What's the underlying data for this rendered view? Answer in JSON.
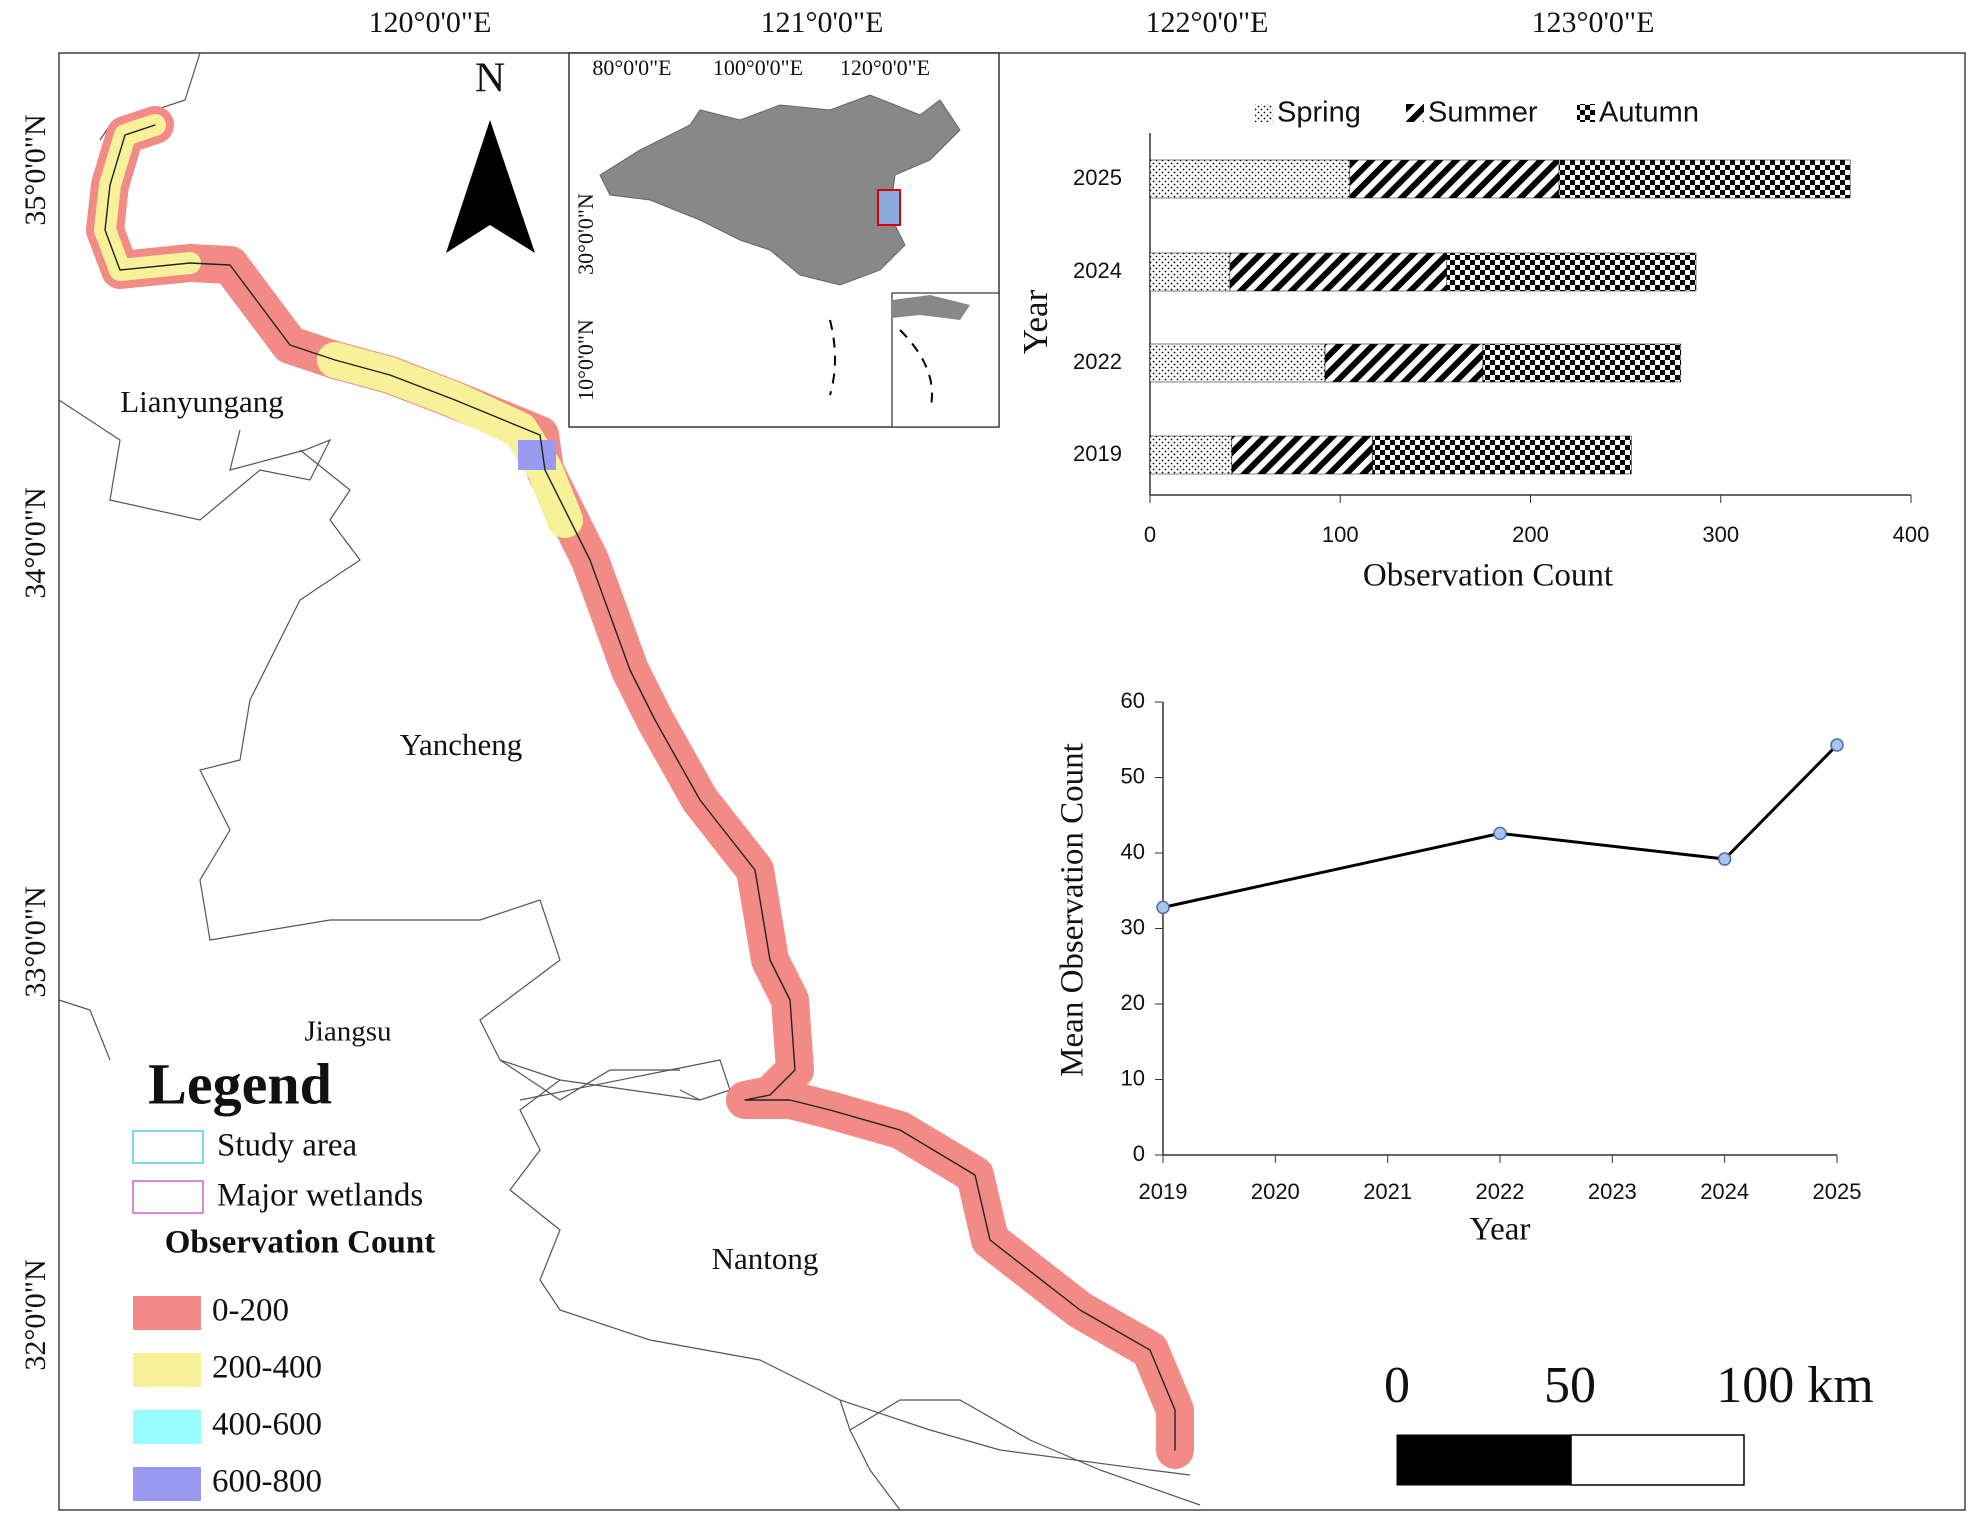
{
  "map": {
    "lon_labels": [
      "120°0'0\"E",
      "121°0'0\"E",
      "122°0'0\"E",
      "123°0'0\"E"
    ],
    "lat_labels": [
      "35°0'0\"N",
      "34°0'0\"N",
      "33°0'0\"N",
      "32°0'0\"N"
    ],
    "north": "N",
    "places": [
      "Lianyungang",
      "Yancheng",
      "Nantong"
    ],
    "province": "Jiangsu",
    "inset": {
      "lon_labels": [
        "80°0'0\"E",
        "100°0'0\"E",
        "120°0'0\"E"
      ],
      "lat_labels": [
        "30°0'0\"N",
        "10°0'0\"N"
      ]
    },
    "legend": {
      "title": "Legend",
      "items": [
        "Study area",
        "Major wetlands"
      ],
      "count_title": "Observation Count",
      "classes": [
        {
          "label": "0-200",
          "color": "#f28b86"
        },
        {
          "label": "200-400",
          "color": "#f7f29a"
        },
        {
          "label": "400-600",
          "color": "#99fcfc"
        },
        {
          "label": "600-800",
          "color": "#9a9af0"
        }
      ]
    },
    "scale_bar": [
      "0",
      "50",
      "100 km"
    ]
  },
  "chart_data": [
    {
      "type": "stacked_barh",
      "categories": [
        "2025",
        "2024",
        "2022",
        "2019"
      ],
      "series": [
        {
          "name": "Spring",
          "color": "#000000",
          "pattern": "dots",
          "values": [
            105,
            42,
            92,
            43
          ]
        },
        {
          "name": "Summer",
          "color": "#000000",
          "pattern": "hatch",
          "values": [
            110,
            114,
            83,
            74
          ]
        },
        {
          "name": "Autumn",
          "color": "#000000",
          "pattern": "checker",
          "values": [
            153,
            131,
            104,
            136
          ]
        }
      ],
      "xlim": [
        0,
        400
      ],
      "xticks": [
        0,
        100,
        200,
        300,
        400
      ],
      "xlabel": "Observation Count",
      "ylabel": "Year",
      "legend": "top"
    },
    {
      "type": "line",
      "x": [
        2019,
        2022,
        2024,
        2025
      ],
      "values": [
        32.8,
        42.6,
        39.2,
        54.3
      ],
      "color": "#000000",
      "marker_color": "#a9c4eb",
      "xlim": [
        2019,
        2025
      ],
      "xticks": [
        2019,
        2020,
        2021,
        2022,
        2023,
        2024,
        2025
      ],
      "ylim": [
        0,
        60
      ],
      "yticks": [
        0,
        10,
        20,
        30,
        40,
        50,
        60
      ],
      "xlabel": "Year",
      "ylabel": "Mean Observation Count"
    }
  ]
}
